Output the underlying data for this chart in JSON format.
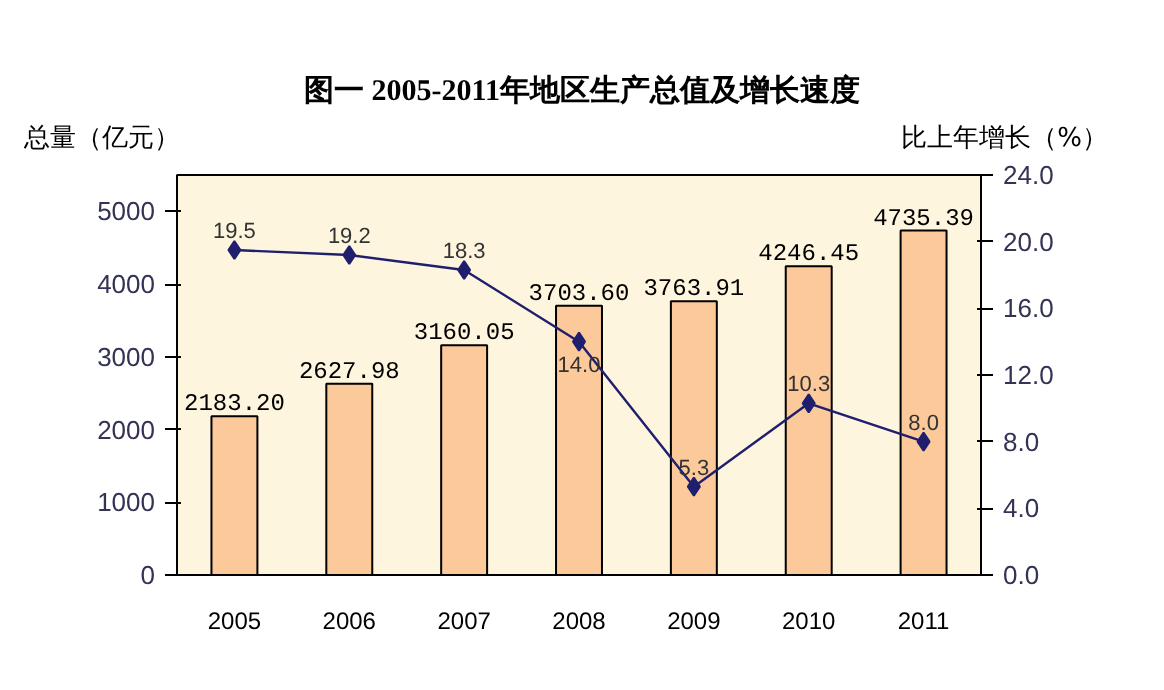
{
  "chart_data": {
    "type": "bar",
    "title": "图一 2005-2011年地区生产总值及增长速度",
    "ylabel": "总量（亿元）",
    "y2label": "比上年增长（%）",
    "categories": [
      "2005",
      "2006",
      "2007",
      "2008",
      "2009",
      "2010",
      "2011"
    ],
    "series": [
      {
        "color": "#fbc99a",
        "values": [
          2183.2,
          2627.98,
          3160.05,
          3703.6,
          3763.91,
          4246.45,
          4735.39
        ],
        "value_labels": [
          "2183.20",
          "2627.98",
          "3160.05",
          "3703.60",
          "3763.91",
          "4246.45",
          "4735.39"
        ]
      },
      {
        "type": "line",
        "axis": "y2",
        "color": "#1f1f6e",
        "values": [
          19.5,
          19.2,
          18.3,
          14.0,
          5.3,
          10.3,
          8.0
        ],
        "value_labels": [
          "19.5",
          "19.2",
          "18.3",
          "14.0",
          "5.3",
          "10.3",
          "8.0"
        ]
      }
    ],
    "ylim": [
      0,
      5500
    ],
    "yticks": [
      0,
      1000,
      2000,
      3000,
      4000,
      5000
    ],
    "y2lim": [
      0,
      24
    ],
    "y2ticks": [
      {
        "value": 0,
        "label": "0.0"
      },
      {
        "value": 4,
        "label": "4.0"
      },
      {
        "value": 8,
        "label": "8.0"
      },
      {
        "value": 12,
        "label": "12.0"
      },
      {
        "value": 16,
        "label": "16.0"
      },
      {
        "value": 20,
        "label": "20.0"
      },
      {
        "value": 24,
        "label": "24.0"
      }
    ],
    "marker": "diamond",
    "line_style": "solid",
    "grid": false
  }
}
